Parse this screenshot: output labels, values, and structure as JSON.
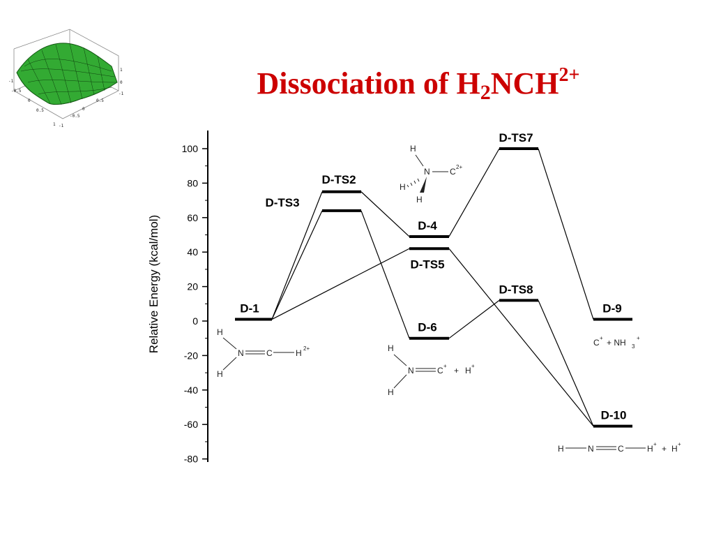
{
  "title": {
    "prefix": "Dissociation of H",
    "sub": "2",
    "mid": "NCH",
    "sup": "2+"
  },
  "chart_data": {
    "type": "energy-level-diagram",
    "ylabel": "Relative Energy (kcal/mol)",
    "ylim": [
      -80,
      100
    ],
    "yticks": [
      100,
      80,
      60,
      40,
      20,
      0,
      -20,
      -40,
      -60,
      -80
    ],
    "levels": [
      {
        "label": "D-1",
        "energy": 1
      },
      {
        "label": "D-TS3",
        "energy": 64
      },
      {
        "label": "D-TS2",
        "energy": 75
      },
      {
        "label": "D-4",
        "energy": 49
      },
      {
        "label": "D-TS5",
        "energy": 42
      },
      {
        "label": "D-6",
        "energy": -10
      },
      {
        "label": "D-TS7",
        "energy": 100
      },
      {
        "label": "D-TS8",
        "energy": 12
      },
      {
        "label": "D-9",
        "energy": 1
      },
      {
        "label": "D-10",
        "energy": -61
      }
    ],
    "connections": [
      [
        "D-1",
        "D-TS2"
      ],
      [
        "D-1",
        "D-TS3"
      ],
      [
        "D-1",
        "D-TS5"
      ],
      [
        "D-TS2",
        "D-4"
      ],
      [
        "D-TS3",
        "D-6"
      ],
      [
        "D-4",
        "D-TS7"
      ],
      [
        "D-TS7",
        "D-9"
      ],
      [
        "D-6",
        "D-TS8"
      ],
      [
        "D-TS8",
        "D-10"
      ],
      [
        "D-TS5",
        "D-10"
      ]
    ],
    "structures": {
      "d1": {
        "h": "H",
        "n": "N",
        "c": "C",
        "charge": "2+"
      },
      "dts7": {
        "h": "H",
        "n": "N",
        "c": "C",
        "charge": "2+"
      },
      "d6": {
        "h": "H",
        "n": "N",
        "c": "C",
        "cplus": "+",
        "plus": "+",
        "hplus": "H",
        "hcharge": "+"
      },
      "d9": {
        "c": "C",
        "cplus": "+",
        "plus": "+ NH",
        "sub3": "3",
        "nplus": "+"
      },
      "d10": {
        "h": "H",
        "n": "N",
        "c": "C",
        "hplus": "H",
        "hcharge": "+",
        "plus": "+",
        "h2": "H",
        "h2charge": "+"
      }
    }
  },
  "logo": {
    "ticks": [
      "-1",
      "-0.5",
      "0",
      "0.5",
      "1",
      "0.5",
      "0",
      "-0.5",
      "-1",
      "1",
      "0",
      "-1"
    ]
  }
}
